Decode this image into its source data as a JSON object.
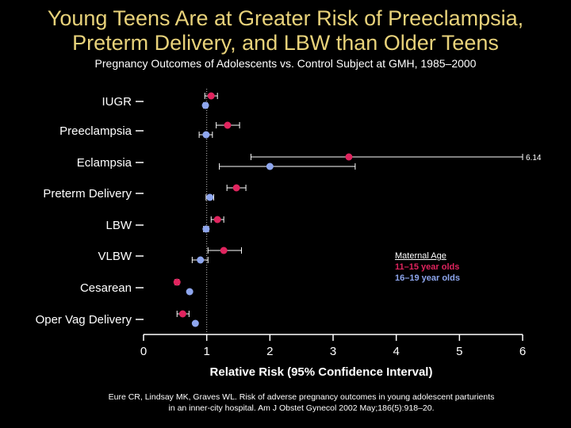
{
  "slide": {
    "title_line1": "Young Teens Are at Greater Risk of Preeclampsia,",
    "title_line2": "Preterm Delivery, and LBW than Older Teens",
    "subtitle": "Pregnancy Outcomes of Adolescents vs. Control Subject at GMH, 1985–2000",
    "source_line1": "Eure CR, Lindsay MK, Graves WL. Risk of adverse pregnancy outcomes in young adolescent parturients",
    "source_line2": "in an inner-city hospital. Am J Obstet Gynecol 2002 May;186(5):918–20."
  },
  "legend": {
    "title": "Maternal Age",
    "items": [
      {
        "label": "11–15 year olds",
        "color": "#e0245e"
      },
      {
        "label": "16–19 year olds",
        "color": "#8ea6ee"
      }
    ]
  },
  "chart_data": {
    "type": "forest plot",
    "xlabel": "Relative Risk (95% Confidence Interval)",
    "xlim": [
      0,
      6
    ],
    "xticks": [
      "0",
      "1",
      "2",
      "3",
      "4",
      "5",
      "6"
    ],
    "reference_line_x": 1,
    "categories": [
      "IUGR",
      "Preeclampsia",
      "Eclampsia",
      "Preterm Delivery",
      "LBW",
      "VLBW",
      "Cesarean",
      "Oper Vag Delivery"
    ],
    "series": [
      {
        "name": "11–15 year olds",
        "color": "#e0245e",
        "values": [
          1.07,
          1.33,
          3.25,
          1.47,
          1.17,
          1.27,
          0.53,
          0.62
        ],
        "ci_low": [
          0.97,
          1.15,
          1.7,
          1.32,
          1.07,
          1.02,
          0.5,
          0.53
        ],
        "ci_high": [
          1.17,
          1.52,
          6.0,
          1.62,
          1.27,
          1.55,
          0.56,
          0.72
        ]
      },
      {
        "name": "16–19 year olds",
        "color": "#8ea6ee",
        "values": [
          0.98,
          0.99,
          2.0,
          1.05,
          0.99,
          0.9,
          0.73,
          0.82
        ],
        "ci_low": [
          0.95,
          0.88,
          1.2,
          0.99,
          0.95,
          0.77,
          null,
          null
        ],
        "ci_high": [
          1.01,
          1.09,
          3.35,
          1.11,
          1.03,
          1.02,
          null,
          null
        ]
      }
    ],
    "annotations": [
      {
        "text": "6.14",
        "category": "Eclampsia"
      }
    ]
  }
}
